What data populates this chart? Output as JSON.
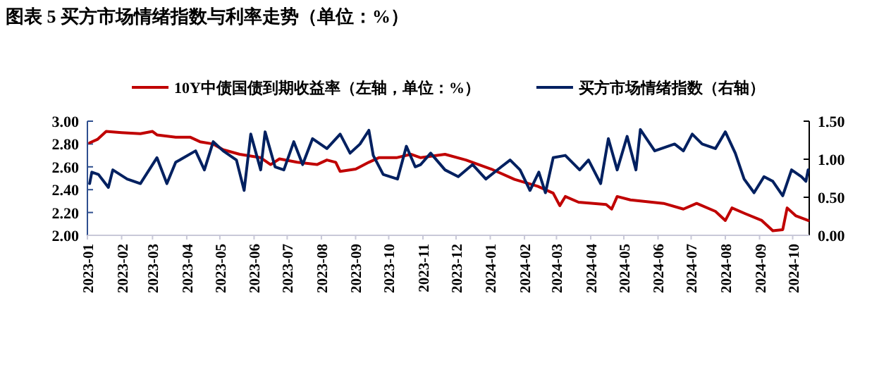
{
  "chart_data": {
    "type": "line",
    "title": "图表 5  买方市场情绪指数与利率走势（单位：%）",
    "xlim": [
      "2023-01-01",
      "2024-10-16"
    ],
    "xticks": [
      "2023-01",
      "2023-02",
      "2023-03",
      "2023-04",
      "2023-05",
      "2023-06",
      "2023-07",
      "2023-08",
      "2023-09",
      "2023-10",
      "2023-11",
      "2023-12",
      "2024-01",
      "2024-02",
      "2024-03",
      "2024-04",
      "2024-05",
      "2024-06",
      "2024-07",
      "2024-08",
      "2024-09",
      "2024-10"
    ],
    "ylim": [
      2.0,
      3.0
    ],
    "yticks": [
      {
        "value": 2.0,
        "label": "2.00"
      },
      {
        "value": 2.2,
        "label": "2.20"
      },
      {
        "value": 2.4,
        "label": "2.40"
      },
      {
        "value": 2.6,
        "label": "2.60"
      },
      {
        "value": 2.8,
        "label": "2.80"
      },
      {
        "value": 3.0,
        "label": "3.00"
      }
    ],
    "y2lim": [
      0,
      1.5
    ],
    "y2ticks": [
      {
        "value": 0,
        "label": "0.00"
      },
      {
        "value": 0.5,
        "label": "0.50"
      },
      {
        "value": 1.0,
        "label": "1.00"
      },
      {
        "value": 1.5,
        "label": "1.50"
      }
    ],
    "grid": false,
    "legend": "top",
    "marker": "none",
    "line_style": "solid",
    "series": [
      {
        "name": "10Y中债国债到期收益率（左轴，单位：%）",
        "color": "#c00000",
        "axis": "y",
        "x": [
          "2023-01-03",
          "2023-01-10",
          "2023-01-18",
          "2023-02-01",
          "2023-02-18",
          "2023-03-01",
          "2023-03-05",
          "2023-03-22",
          "2023-04-04",
          "2023-04-13",
          "2023-04-25",
          "2023-05-04",
          "2023-05-19",
          "2023-06-07",
          "2023-06-16",
          "2023-06-24",
          "2023-07-10",
          "2023-07-28",
          "2023-08-06",
          "2023-08-14",
          "2023-08-18",
          "2023-09-01",
          "2023-09-13",
          "2023-09-22",
          "2023-10-08",
          "2023-10-21",
          "2023-10-30",
          "2023-11-21",
          "2023-12-10",
          "2024-01-02",
          "2024-01-23",
          "2024-02-13",
          "2024-02-27",
          "2024-03-04",
          "2024-03-09",
          "2024-03-21",
          "2024-04-15",
          "2024-04-20",
          "2024-04-25",
          "2024-05-07",
          "2024-06-06",
          "2024-06-24",
          "2024-07-06",
          "2024-07-23",
          "2024-08-01",
          "2024-08-07",
          "2024-08-19",
          "2024-09-03",
          "2024-09-13",
          "2024-09-22",
          "2024-09-26",
          "2024-10-04",
          "2024-10-15"
        ],
        "values": [
          2.81,
          2.84,
          2.91,
          2.9,
          2.89,
          2.91,
          2.88,
          2.86,
          2.86,
          2.82,
          2.8,
          2.75,
          2.71,
          2.68,
          2.62,
          2.67,
          2.64,
          2.62,
          2.66,
          2.64,
          2.56,
          2.58,
          2.64,
          2.68,
          2.68,
          2.71,
          2.68,
          2.71,
          2.66,
          2.58,
          2.49,
          2.43,
          2.37,
          2.26,
          2.34,
          2.29,
          2.27,
          2.23,
          2.34,
          2.31,
          2.28,
          2.23,
          2.28,
          2.21,
          2.13,
          2.24,
          2.19,
          2.13,
          2.04,
          2.05,
          2.24,
          2.17,
          2.13
        ]
      },
      {
        "name": "买方市场情绪指数（右轴）",
        "color": "#002060",
        "axis": "y2",
        "x": [
          "2023-01-03",
          "2023-01-05",
          "2023-01-11",
          "2023-01-20",
          "2023-01-24",
          "2023-02-06",
          "2023-02-18",
          "2023-03-01",
          "2023-03-05",
          "2023-03-14",
          "2023-03-22",
          "2023-04-09",
          "2023-04-17",
          "2023-04-25",
          "2023-05-04",
          "2023-05-16",
          "2023-05-23",
          "2023-05-29",
          "2023-06-07",
          "2023-06-11",
          "2023-06-20",
          "2023-06-28",
          "2023-07-07",
          "2023-07-15",
          "2023-07-24",
          "2023-08-06",
          "2023-08-18",
          "2023-08-27",
          "2023-09-05",
          "2023-09-13",
          "2023-09-17",
          "2023-09-26",
          "2023-10-09",
          "2023-10-17",
          "2023-10-25",
          "2023-10-30",
          "2023-11-08",
          "2023-11-21",
          "2023-12-03",
          "2023-12-16",
          "2023-12-28",
          "2024-01-11",
          "2024-01-19",
          "2024-01-28",
          "2024-02-06",
          "2024-02-14",
          "2024-02-20",
          "2024-02-27",
          "2024-03-09",
          "2024-03-22",
          "2024-03-30",
          "2024-04-10",
          "2024-04-17",
          "2024-04-25",
          "2024-05-04",
          "2024-05-12",
          "2024-05-16",
          "2024-05-29",
          "2024-06-16",
          "2024-06-24",
          "2024-07-02",
          "2024-07-11",
          "2024-07-23",
          "2024-08-01",
          "2024-08-10",
          "2024-08-18",
          "2024-08-27",
          "2024-09-05",
          "2024-09-13",
          "2024-09-22",
          "2024-09-30",
          "2024-10-09",
          "2024-10-13",
          "2024-10-15"
        ],
        "values": [
          0.68,
          0.83,
          0.8,
          0.63,
          0.86,
          0.74,
          0.68,
          0.93,
          1.02,
          0.68,
          0.96,
          1.11,
          0.86,
          1.23,
          1.11,
          0.99,
          0.59,
          1.33,
          0.86,
          1.36,
          0.9,
          0.86,
          1.23,
          0.93,
          1.27,
          1.14,
          1.33,
          1.08,
          1.2,
          1.38,
          1.05,
          0.8,
          0.74,
          1.17,
          0.9,
          0.93,
          1.08,
          0.86,
          0.77,
          0.93,
          0.74,
          0.9,
          0.99,
          0.86,
          0.59,
          0.83,
          0.56,
          1.02,
          1.05,
          0.86,
          0.99,
          0.68,
          1.27,
          0.86,
          1.3,
          0.86,
          1.39,
          1.11,
          1.2,
          1.11,
          1.33,
          1.2,
          1.14,
          1.36,
          1.08,
          0.74,
          0.56,
          0.77,
          0.71,
          0.52,
          0.86,
          0.77,
          0.71,
          0.86
        ]
      }
    ]
  }
}
